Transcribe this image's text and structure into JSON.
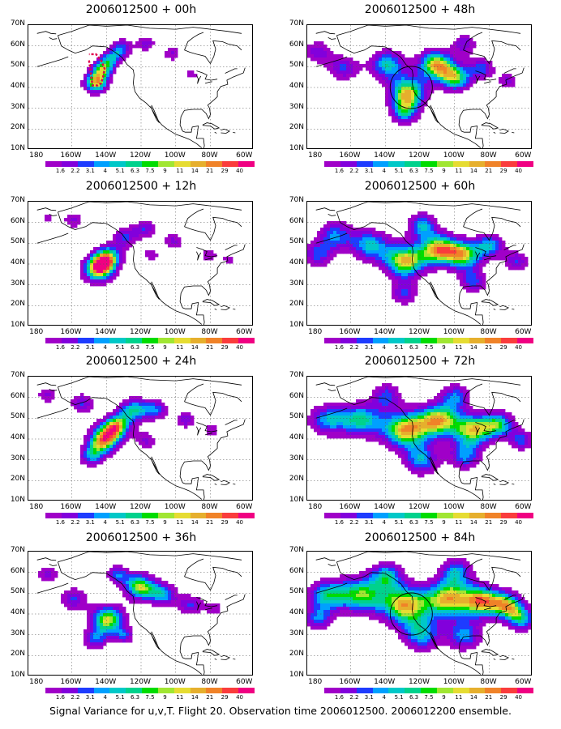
{
  "panels": [
    {
      "title": "2006012500 + 00h",
      "stage": 0,
      "overlay": "route"
    },
    {
      "title": "2006012500 + 48h",
      "stage": 4,
      "overlay": "circle"
    },
    {
      "title": "2006012500 + 12h",
      "stage": 1,
      "overlay": "none"
    },
    {
      "title": "2006012500 + 60h",
      "stage": 5,
      "overlay": "none"
    },
    {
      "title": "2006012500 + 24h",
      "stage": 2,
      "overlay": "none"
    },
    {
      "title": "2006012500 + 72h",
      "stage": 6,
      "overlay": "none"
    },
    {
      "title": "2006012500 + 36h",
      "stage": 3,
      "overlay": "none"
    },
    {
      "title": "2006012500 + 84h",
      "stage": 7,
      "overlay": "circle"
    }
  ],
  "lat_labels": [
    "70N",
    "60N",
    "50N",
    "40N",
    "30N",
    "20N",
    "10N"
  ],
  "lon_labels": [
    "180",
    "160W",
    "140W",
    "120W",
    "100W",
    "80W",
    "60W"
  ],
  "colorbar": {
    "labels": [
      "1.6",
      "2.2",
      "3.1",
      "4",
      "5.1",
      "6.3",
      "7.5",
      "9",
      "11",
      "14",
      "21",
      "29",
      "40"
    ],
    "colors": [
      "#a000c8",
      "#8200dc",
      "#1e3cff",
      "#00a0ff",
      "#00c8c8",
      "#00d28c",
      "#00dc00",
      "#a0e632",
      "#e6dc32",
      "#e6af2d",
      "#f08228",
      "#fa3c3c",
      "#f00082"
    ]
  },
  "caption": "Signal Variance for u,v,T. Flight 20. Observation time 2006012500. 2006012200 ensemble."
}
